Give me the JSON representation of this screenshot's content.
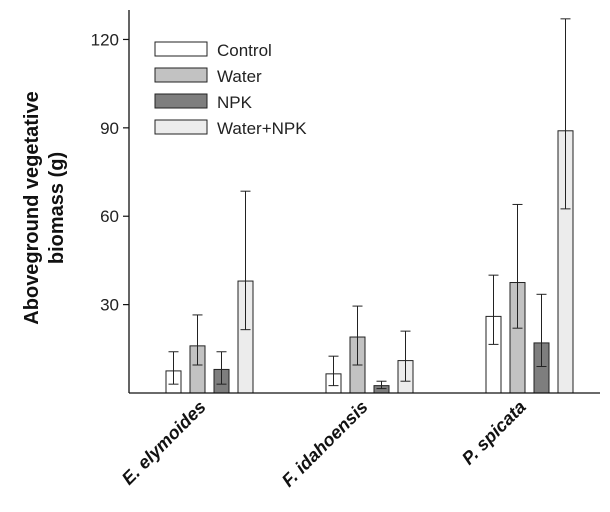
{
  "chart_data": {
    "type": "bar",
    "title": "",
    "xlabel": "",
    "ylabel_lines": [
      "Aboveground vegetative",
      "biomass (g)"
    ],
    "categories": [
      "E. elymoides",
      "F. idahoensis",
      "P. spicata"
    ],
    "series": [
      {
        "name": "Control",
        "color": "#ffffff",
        "values": [
          7.5,
          6.5,
          26
        ],
        "err_low": [
          3,
          2.5,
          16.5
        ],
        "err_high": [
          14,
          12.5,
          40
        ]
      },
      {
        "name": "Water",
        "color": "#c2c2c2",
        "values": [
          16,
          19,
          37.5
        ],
        "err_low": [
          9.5,
          9.5,
          22
        ],
        "err_high": [
          26.5,
          29.5,
          64
        ]
      },
      {
        "name": "NPK",
        "color": "#7e7e7e",
        "values": [
          8,
          2.5,
          17
        ],
        "err_low": [
          3,
          1.5,
          9
        ],
        "err_high": [
          14,
          4,
          33.5
        ]
      },
      {
        "name": "Water+NPK",
        "color": "#ececec",
        "values": [
          38,
          11,
          89
        ],
        "err_low": [
          21.5,
          4,
          62.5
        ],
        "err_high": [
          68.5,
          21,
          127
        ]
      }
    ],
    "y_ticks": [
      30,
      60,
      90,
      120
    ],
    "ylim": [
      0,
      130
    ],
    "legend_position": "top-left",
    "grid": false
  }
}
